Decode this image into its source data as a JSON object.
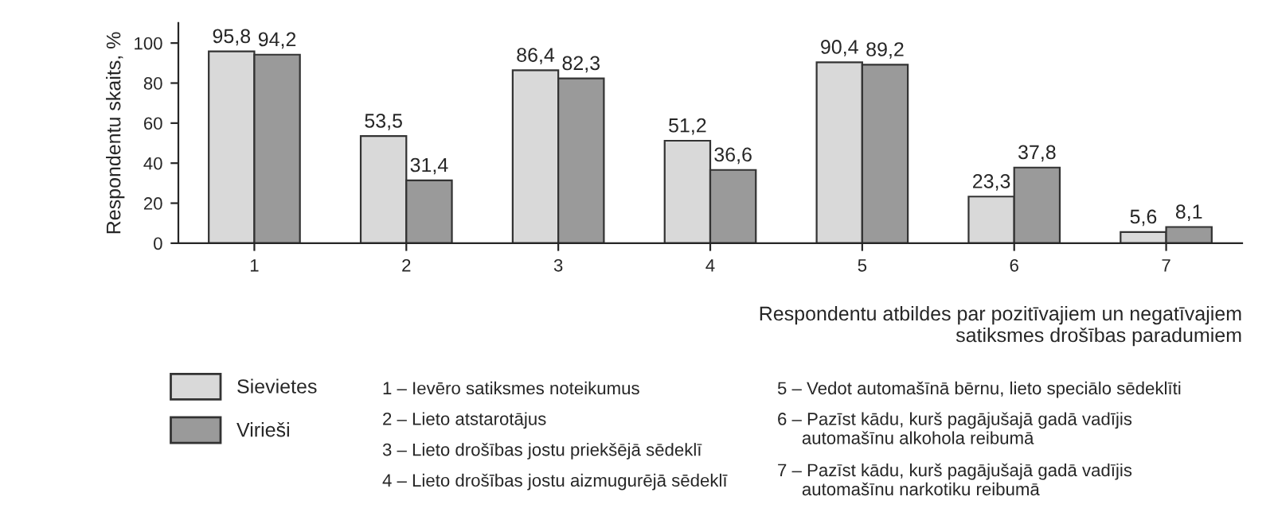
{
  "chart_data": {
    "type": "bar",
    "categories": [
      "1",
      "2",
      "3",
      "4",
      "5",
      "6",
      "7"
    ],
    "series": [
      {
        "name": "Sievietes",
        "color": "#d9d9d9",
        "values": [
          95.8,
          53.5,
          86.4,
          51.2,
          90.4,
          23.3,
          5.6
        ],
        "value_labels": [
          "95,8",
          "53,5",
          "86,4",
          "51,2",
          "90,4",
          "23,3",
          "5,6"
        ]
      },
      {
        "name": "Virieši",
        "color": "#9a9a9a",
        "values": [
          94.2,
          31.4,
          82.3,
          36.6,
          89.2,
          37.8,
          8.1
        ],
        "value_labels": [
          "94,2",
          "31,4",
          "82,3",
          "36,6",
          "89,2",
          "37,8",
          "8,1"
        ]
      }
    ],
    "ylabel": "Respondentu skaits, %",
    "xlabel": "Respondentu atbildes par pozitīvajiem un negatīvajiem\nsatiksmes drošības paradumiem",
    "ylim": [
      0,
      110
    ],
    "yticks": [
      0,
      20,
      40,
      60,
      80,
      100
    ],
    "grid": false,
    "legend": "bottom left",
    "annotations": [
      "1 – Ievēro satiksmes noteikumus",
      "2 – Lieto atstarotājus",
      "3 – Lieto drošības jostu priekšējā sēdeklī",
      "4 – Lieto drošības jostu aizmugurējā sēdeklī",
      "5 – Vedot automašīnā bērnu, lieto speciālo sēdeklīti",
      "6 – Pazīst kādu, kurš pagājušajā gadā vadījis\n     automašīnu alkohola reibumā",
      "7 – Pazīst kādu, kurš pagājušajā gadā vadījis\n     automašīnu narkotiku reibumā"
    ]
  }
}
